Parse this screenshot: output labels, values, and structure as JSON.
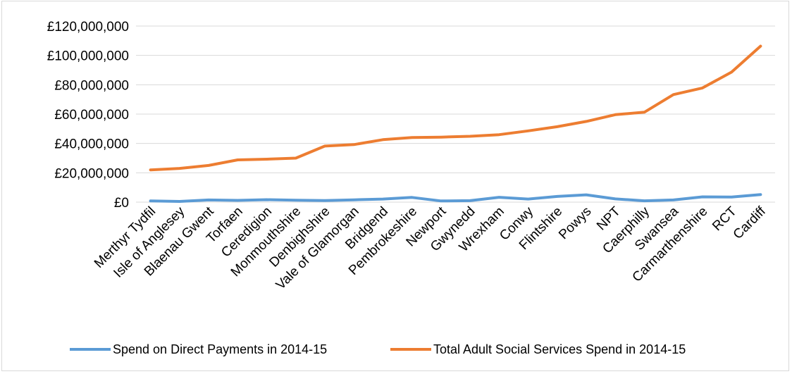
{
  "chart_data": {
    "type": "line",
    "title": "",
    "xlabel": "",
    "ylabel": "",
    "categories": [
      "Merthyr Tydfil",
      "Isle of Anglesey",
      "Blaenau Gwent",
      "Torfaen",
      "Ceredigion",
      "Monmouthshire",
      "Denbighshire",
      "Vale of Glamorgan",
      "Bridgend",
      "Pembrokeshire",
      "Newport",
      "Gwynedd",
      "Wrexham",
      "Conwy",
      "Flintshire",
      "Powys",
      "NPT",
      "Caerphilly",
      "Swansea",
      "Carmarthenshire",
      "RCT",
      "Cardiff"
    ],
    "ylim": [
      0,
      120000000
    ],
    "yticks": [
      0,
      20000000,
      40000000,
      60000000,
      80000000,
      100000000,
      120000000
    ],
    "ytick_labels": [
      "£0",
      "£20,000,000",
      "£40,000,000",
      "£60,000,000",
      "£80,000,000",
      "£100,000,000",
      "£120,000,000"
    ],
    "grid": true,
    "legend_position": "bottom",
    "series": [
      {
        "name": "Spend on Direct Payments in 2014-15",
        "color": "#5b9bd5",
        "values": [
          800000,
          500000,
          1500000,
          1200000,
          1700000,
          1300000,
          1100000,
          1600000,
          2100000,
          3200000,
          800000,
          1000000,
          3300000,
          2100000,
          3900000,
          5000000,
          2200000,
          900000,
          1500000,
          3600000,
          3500000,
          5200000
        ]
      },
      {
        "name": "Total Adult Social Services Spend in 2014-15",
        "color": "#ed7d31",
        "values": [
          22000000,
          23000000,
          25000000,
          28800000,
          29300000,
          30000000,
          38200000,
          39200000,
          42600000,
          44000000,
          44300000,
          44900000,
          46000000,
          48600000,
          51400000,
          55000000,
          59600000,
          61300000,
          73300000,
          77800000,
          88600000,
          106300000
        ]
      }
    ]
  }
}
